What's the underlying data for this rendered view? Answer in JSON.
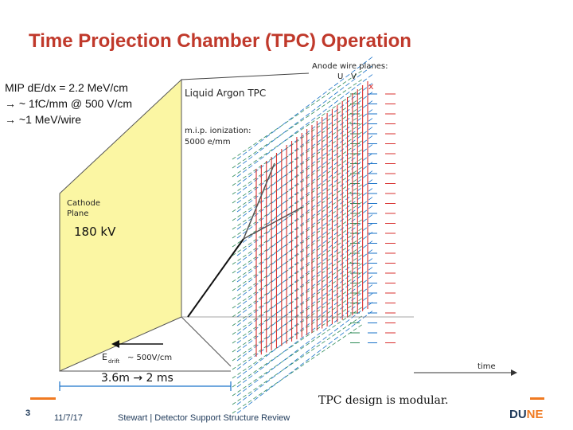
{
  "slide": {
    "title": "Time Projection Chamber (TPC) Operation",
    "mip_lines": [
      "MIP dE/dx = 2.2 MeV/cm",
      "→ ~ 1fC/mm @ 500 V/cm",
      "→ ~1 MeV/wire"
    ],
    "voltage": "180 kV",
    "distance": "3.6m → 2 ms",
    "modular_note": "TPC design is modular."
  },
  "diagram": {
    "anode_label": "Anode wire planes:",
    "plane_u": "U",
    "plane_v": "V",
    "plane_x": "x",
    "tpc_label": "Liquid Argon TPC",
    "ionization_label": "m.i.p. ionization:",
    "ionization_value": "5000 e/mm",
    "cathode_line1": "Cathode",
    "cathode_line2": "Plane",
    "edrift_label": "E",
    "edrift_sub": "drift",
    "edrift_value": "~ 500V/cm",
    "time_label": "time"
  },
  "footer": {
    "page": "3",
    "date": "11/7/17",
    "text": "Stewart  |  Detector Support Structure Review",
    "logo_a": "DU",
    "logo_b": "NE"
  },
  "colors": {
    "title": "#c0392b",
    "cathode_fill": "#fbf6a3",
    "wire_u": "#2e8b57",
    "wire_v": "#1a73c9",
    "wire_x": "#d9302f",
    "accent": "#f07a21"
  }
}
